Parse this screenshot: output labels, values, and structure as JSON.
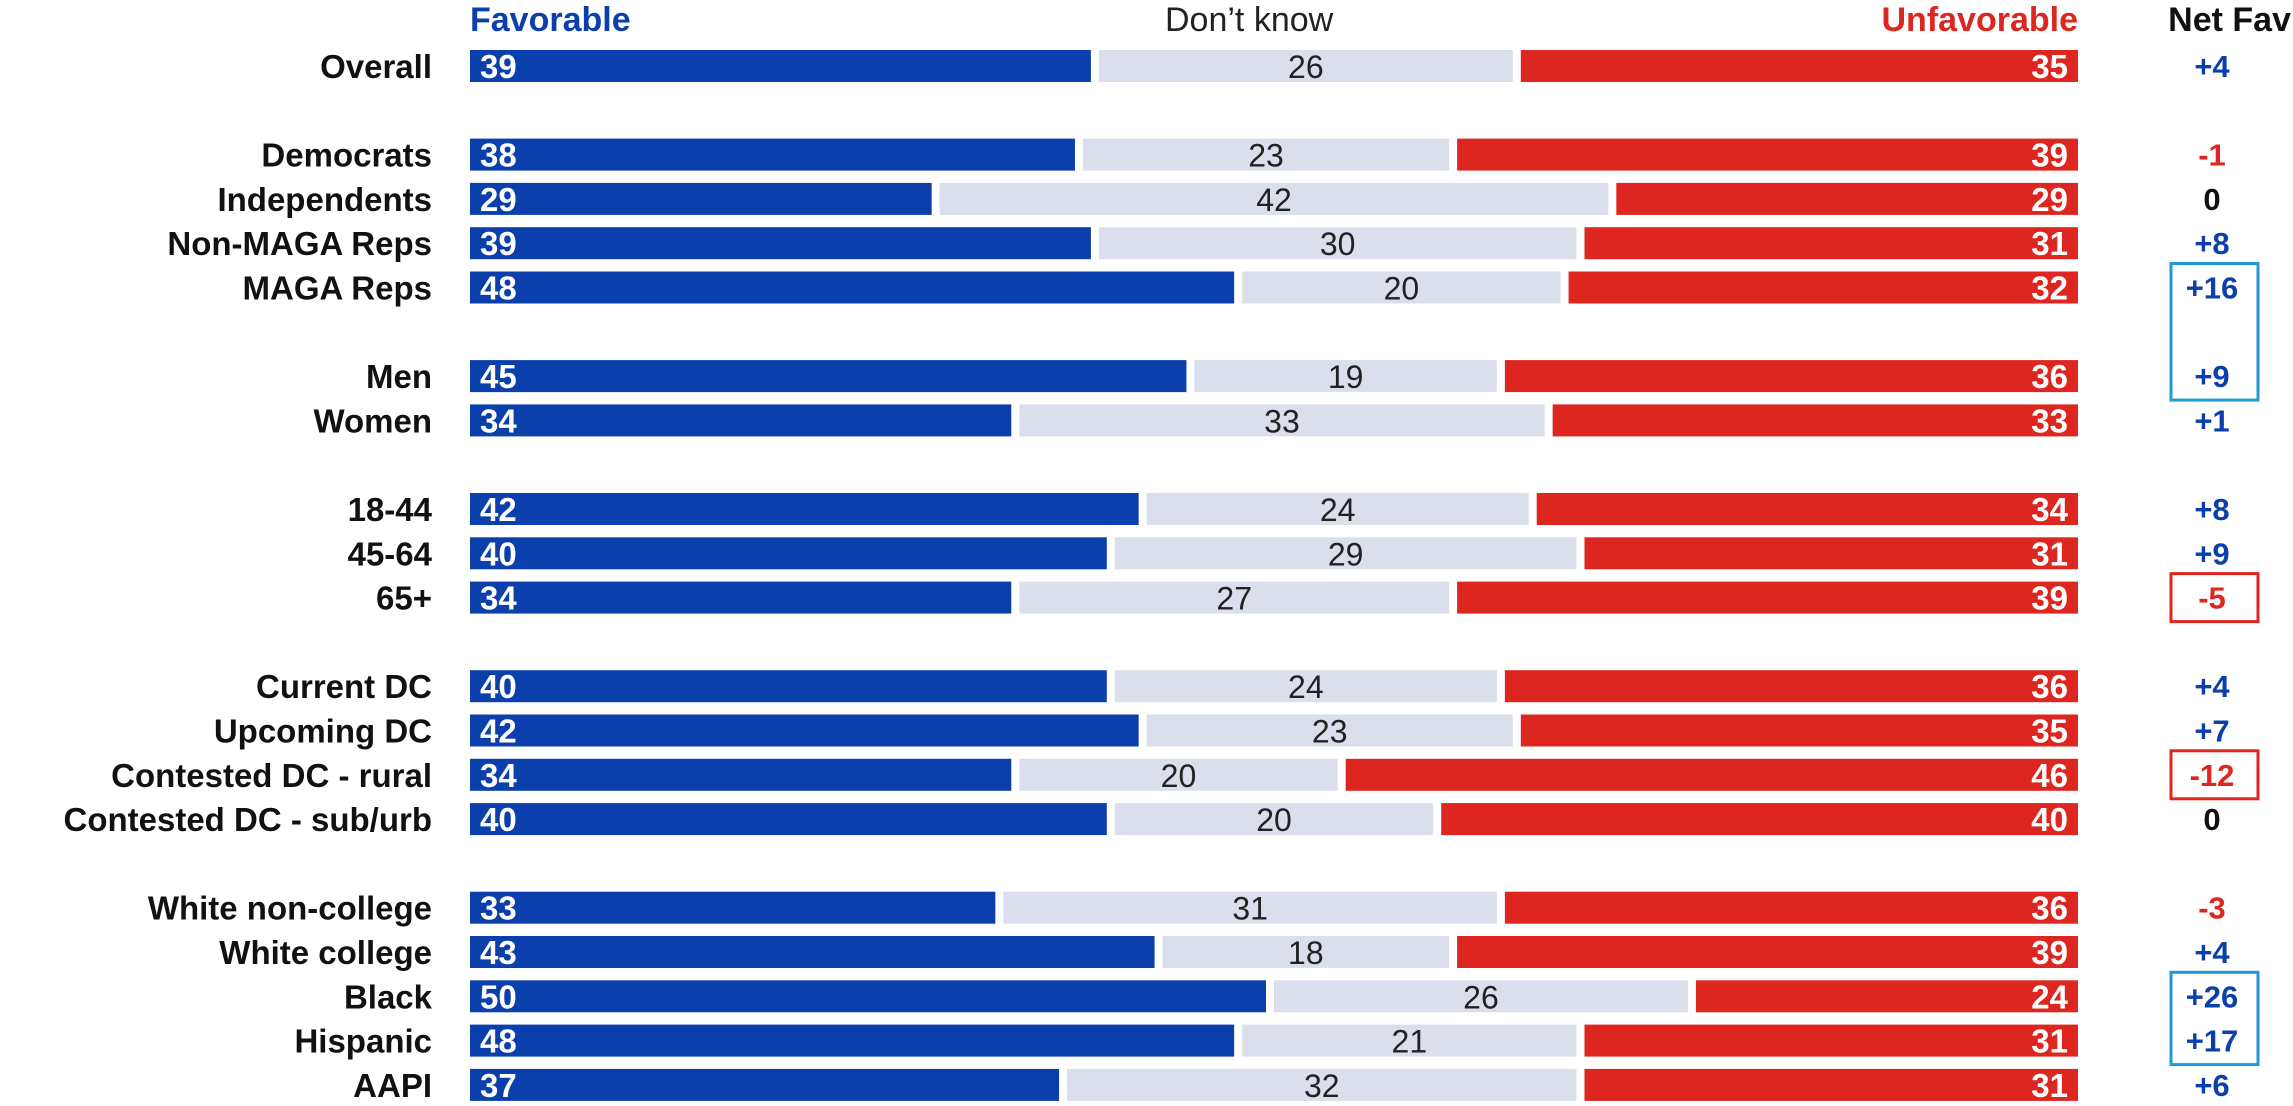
{
  "headers": {
    "favorable": "Favorable",
    "dont_know": "Don’t know",
    "unfavorable": "Unfavorable",
    "net_fav": "Net Fav"
  },
  "colors": {
    "favorable": "#0b3fac",
    "dont_know": "#dadfeb",
    "unfavorable": "#dd2620",
    "positive_net": "#0b3fac",
    "negative_net": "#dd2620",
    "zero_net": "#111111",
    "highlight_positive": "#1e9ad6",
    "highlight_negative": "#dd2620"
  },
  "chart_data": {
    "type": "bar",
    "stacked": true,
    "orientation": "horizontal",
    "categories": [
      "Overall",
      "Democrats",
      "Independents",
      "Non-MAGA Reps",
      "MAGA Reps",
      "Men",
      "Women",
      "18-44",
      "45-64",
      "65+",
      "Current DC",
      "Upcoming DC",
      "Contested DC - rural",
      "Contested DC - sub/urb",
      "White non-college",
      "White college",
      "Black",
      "Hispanic",
      "AAPI"
    ],
    "groups": [
      1,
      4,
      2,
      3,
      4,
      5
    ],
    "series": [
      {
        "name": "Favorable",
        "values": [
          39,
          38,
          29,
          39,
          48,
          45,
          34,
          42,
          40,
          34,
          40,
          42,
          34,
          40,
          33,
          43,
          50,
          48,
          37
        ]
      },
      {
        "name": "Don’t know",
        "values": [
          26,
          23,
          42,
          30,
          20,
          19,
          33,
          24,
          29,
          27,
          24,
          23,
          20,
          20,
          31,
          18,
          26,
          21,
          32
        ]
      },
      {
        "name": "Unfavorable",
        "values": [
          35,
          39,
          29,
          31,
          32,
          36,
          33,
          34,
          31,
          39,
          36,
          35,
          46,
          40,
          36,
          39,
          24,
          31,
          31
        ]
      }
    ],
    "net_fav": [
      "+4",
      "-1",
      "0",
      "+8",
      "+16",
      "+9",
      "+1",
      "+8",
      "+9",
      "-5",
      "+4",
      "+7",
      "-12",
      "0",
      "-3",
      "+4",
      "+26",
      "+17",
      "+6"
    ],
    "highlight_boxes": [
      {
        "rows": [
          4,
          5
        ],
        "style": "positive"
      },
      {
        "rows": [
          9
        ],
        "style": "negative"
      },
      {
        "rows": [
          12
        ],
        "style": "negative"
      },
      {
        "rows": [
          16,
          17
        ],
        "style": "positive"
      }
    ],
    "xlim": [
      0,
      100
    ],
    "legend": "top"
  }
}
